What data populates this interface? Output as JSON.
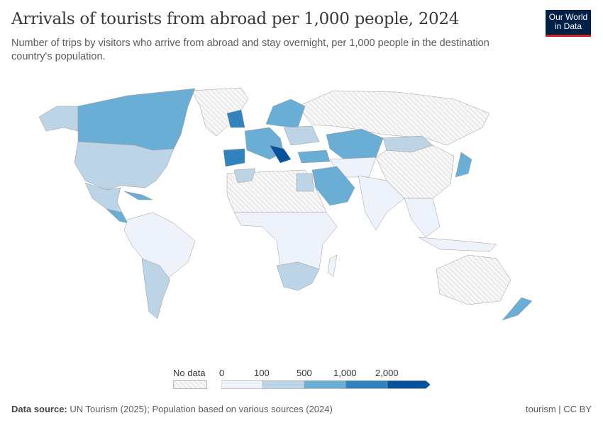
{
  "header": {
    "title": "Arrivals of tourists from abroad per 1,000 people, 2024",
    "subtitle": "Number of trips by visitors who arrive from abroad and stay overnight, per 1,000 people in the destination country's population.",
    "logo_line1": "Our World",
    "logo_line2": "in Data"
  },
  "chart_data": {
    "type": "map",
    "title": "Arrivals of tourists from abroad per 1,000 people, 2024",
    "legend": {
      "no_data_label": "No data",
      "ticks": [
        "0",
        "100",
        "500",
        "1,000",
        "2,000"
      ],
      "bins": [
        {
          "from": 0,
          "to": 100,
          "color": "#eef2fb"
        },
        {
          "from": 100,
          "to": 500,
          "color": "#bcd4e6"
        },
        {
          "from": 500,
          "to": 1000,
          "color": "#6aaed6"
        },
        {
          "from": 1000,
          "to": 2000,
          "color": "#3182bd"
        },
        {
          "from": 2000,
          "to": null,
          "color": "#08519c"
        }
      ],
      "placement": "bottom"
    }
  },
  "footer": {
    "source_label": "Data source:",
    "source_text": "UN Tourism (2025); Population based on various sources (2024)",
    "license": "tourism | CC BY"
  }
}
